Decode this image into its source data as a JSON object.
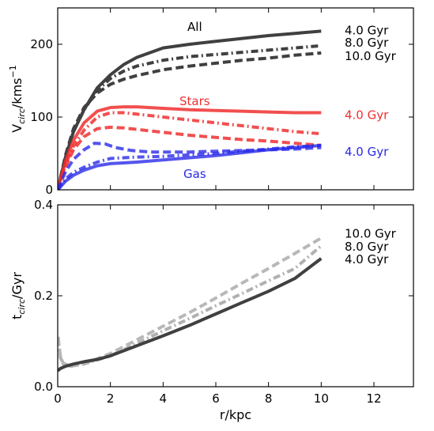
{
  "chart_data": [
    {
      "type": "line",
      "ylabel_main": "V",
      "ylabel_sub": "circ",
      "ylabel_unit": "/kms",
      "ylabel_sup": "−1",
      "xlim": [
        0,
        13.5
      ],
      "ylim": [
        0,
        250
      ],
      "x_ticks": [],
      "x_ticklabels": [],
      "y_ticks": [
        0,
        100,
        200
      ],
      "y_ticklabels": [
        "0",
        "100",
        "200"
      ],
      "colors": {
        "total": "#404040",
        "stars": "#f03030",
        "gas": "#2a2ae8"
      },
      "component_labels": [
        {
          "text": "All",
          "x": 5.2,
          "y": 224,
          "color": "#000000"
        },
        {
          "text": "Stars",
          "x": 5.2,
          "y": 122,
          "color": "#f03030"
        },
        {
          "text": "Gas",
          "x": 5.2,
          "y": 22,
          "color": "#2a2ae8"
        }
      ],
      "legend_labels": [
        {
          "text": "4.0 Gyr",
          "y": 220,
          "color": "#000000"
        },
        {
          "text": "8.0 Gyr",
          "y": 203,
          "color": "#000000"
        },
        {
          "text": "10.0 Gyr",
          "y": 185,
          "color": "#000000"
        },
        {
          "text": "4.0 Gyr",
          "y": 104,
          "color": "#f03030"
        },
        {
          "text": "4.0 Gyr",
          "y": 53,
          "color": "#2a2ae8"
        }
      ],
      "series": [
        {
          "component": "total",
          "style": "solid",
          "opacity": 1.0,
          "x": [
            0,
            0.3,
            0.6,
            1.0,
            1.5,
            2.0,
            2.5,
            3.0,
            4.0,
            5.0,
            6.0,
            7.0,
            8.0,
            9.0,
            10.0
          ],
          "y": [
            0,
            45,
            80,
            110,
            140,
            158,
            172,
            182,
            195,
            200,
            204,
            208,
            212,
            215,
            218
          ]
        },
        {
          "component": "total",
          "style": "dashdot",
          "opacity": 1.0,
          "x": [
            0,
            0.3,
            0.6,
            1.0,
            1.5,
            2.0,
            2.5,
            3.0,
            4.0,
            5.0,
            6.0,
            7.0,
            8.0,
            9.0,
            10.0
          ],
          "y": [
            0,
            45,
            80,
            110,
            137,
            153,
            163,
            170,
            178,
            183,
            186,
            189,
            192,
            195,
            198
          ]
        },
        {
          "component": "total",
          "style": "dashed",
          "opacity": 1.0,
          "x": [
            0,
            0.3,
            0.6,
            1.0,
            1.5,
            2.0,
            2.5,
            3.0,
            4.0,
            5.0,
            6.0,
            7.0,
            8.0,
            9.0,
            10.0
          ],
          "y": [
            0,
            48,
            84,
            113,
            133,
            145,
            152,
            157,
            165,
            170,
            174,
            178,
            181,
            185,
            188
          ]
        },
        {
          "component": "stars",
          "style": "solid",
          "opacity": 0.85,
          "x": [
            0,
            0.3,
            0.6,
            1.0,
            1.5,
            2.0,
            2.5,
            3.0,
            4.0,
            5.0,
            6.0,
            7.0,
            8.0,
            9.0,
            10.0
          ],
          "y": [
            0,
            40,
            68,
            92,
            108,
            113,
            114,
            114,
            112,
            110,
            109,
            108,
            107,
            106,
            106
          ]
        },
        {
          "component": "stars",
          "style": "dashdot",
          "opacity": 0.85,
          "x": [
            0,
            0.3,
            0.6,
            1.0,
            1.5,
            2.0,
            2.5,
            3.0,
            4.0,
            5.0,
            6.0,
            7.0,
            8.0,
            9.0,
            10.0
          ],
          "y": [
            0,
            35,
            60,
            82,
            100,
            106,
            106,
            104,
            100,
            96,
            92,
            88,
            84,
            80,
            77
          ]
        },
        {
          "component": "stars",
          "style": "dashed",
          "opacity": 0.85,
          "x": [
            0,
            0.3,
            0.6,
            1.0,
            1.5,
            2.0,
            2.5,
            3.0,
            4.0,
            5.0,
            6.0,
            7.0,
            8.0,
            9.0,
            10.0
          ],
          "y": [
            0,
            32,
            55,
            73,
            84,
            86,
            85,
            83,
            79,
            75,
            72,
            69,
            67,
            64,
            61
          ]
        },
        {
          "component": "gas",
          "style": "solid",
          "opacity": 0.8,
          "x": [
            0,
            0.3,
            0.6,
            1.0,
            1.5,
            2.0,
            2.5,
            3.0,
            4.0,
            5.0,
            6.0,
            7.0,
            8.0,
            9.0,
            10.0
          ],
          "y": [
            0,
            12,
            20,
            27,
            33,
            36,
            37,
            38,
            41,
            44,
            47,
            51,
            55,
            58,
            61
          ]
        },
        {
          "component": "gas",
          "style": "dashdot",
          "opacity": 0.8,
          "x": [
            0,
            0.3,
            0.6,
            1.0,
            1.5,
            2.0,
            2.5,
            3.0,
            4.0,
            5.0,
            6.0,
            7.0,
            8.0,
            9.0,
            10.0
          ],
          "y": [
            0,
            15,
            24,
            31,
            38,
            43,
            44,
            45,
            46,
            48,
            50,
            53,
            56,
            59,
            61
          ]
        },
        {
          "component": "gas",
          "style": "dashed",
          "opacity": 0.8,
          "x": [
            0,
            0.3,
            0.6,
            1.0,
            1.4,
            1.8,
            2.2,
            2.8,
            3.5,
            4.0,
            5.0,
            6.0,
            7.0,
            8.0,
            9.0,
            10.0
          ],
          "y": [
            0,
            25,
            42,
            55,
            64,
            63,
            58,
            54,
            52,
            52,
            52,
            53,
            54,
            55,
            56,
            58
          ]
        }
      ]
    },
    {
      "type": "line",
      "ylabel_main": "t",
      "ylabel_sub": "circ",
      "ylabel_unit": "/Gyr",
      "xlabel": "r/kpc",
      "xlim": [
        0,
        13.5
      ],
      "ylim": [
        0,
        0.4
      ],
      "x_ticks": [
        0,
        2,
        4,
        6,
        8,
        10,
        12
      ],
      "x_ticklabels": [
        "0",
        "2",
        "4",
        "6",
        "8",
        "10",
        "12"
      ],
      "y_ticks": [
        0,
        0.2,
        0.4
      ],
      "y_ticklabels": [
        "0.0",
        "0.2",
        "0.4"
      ],
      "colors": {
        "t4": "#404040",
        "t8": "#b0b0b0",
        "t10": "#b8b8b8"
      },
      "component_labels": [],
      "legend_labels": [
        {
          "text": "10.0 Gyr",
          "y": 0.338,
          "color": "#000000"
        },
        {
          "text": "8.0 Gyr",
          "y": 0.31,
          "color": "#000000"
        },
        {
          "text": "4.0 Gyr",
          "y": 0.282,
          "color": "#000000"
        }
      ],
      "series": [
        {
          "component": "t8",
          "style": "dashdot",
          "opacity": 1.0,
          "x": [
            0.02,
            0.05,
            0.1,
            0.2,
            0.5,
            1,
            2,
            3,
            4,
            5,
            6,
            7,
            8,
            9,
            10
          ],
          "y": [
            0.105,
            0.085,
            0.065,
            0.05,
            0.045,
            0.05,
            0.068,
            0.095,
            0.123,
            0.15,
            0.178,
            0.205,
            0.233,
            0.26,
            0.31
          ]
        },
        {
          "component": "t10",
          "style": "dashed",
          "opacity": 1.0,
          "x": [
            0.02,
            0.05,
            0.1,
            0.2,
            0.5,
            1,
            2,
            3,
            4,
            5,
            6,
            7,
            8,
            9,
            10
          ],
          "y": [
            0.11,
            0.09,
            0.07,
            0.052,
            0.045,
            0.05,
            0.073,
            0.103,
            0.133,
            0.163,
            0.195,
            0.228,
            0.26,
            0.293,
            0.327
          ]
        },
        {
          "component": "t4",
          "style": "solid",
          "opacity": 1.0,
          "x": [
            0.0,
            0.1,
            0.3,
            0.6,
            1,
            1.5,
            2,
            3,
            4,
            5,
            6,
            7,
            8,
            9,
            10
          ],
          "y": [
            0.035,
            0.04,
            0.045,
            0.05,
            0.055,
            0.06,
            0.068,
            0.09,
            0.112,
            0.135,
            0.16,
            0.185,
            0.21,
            0.238,
            0.282
          ]
        }
      ]
    }
  ]
}
